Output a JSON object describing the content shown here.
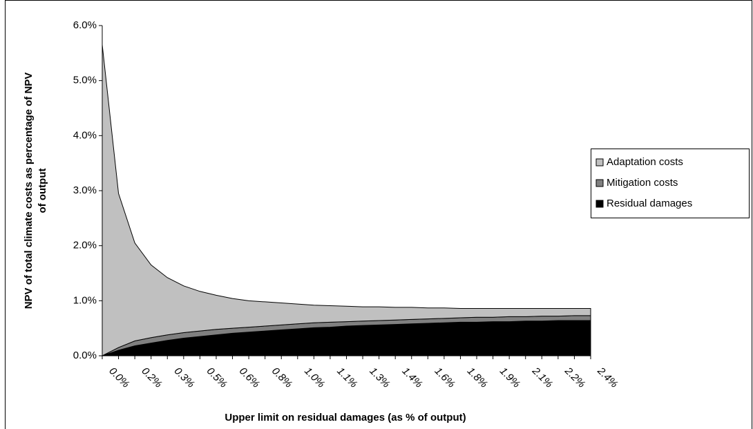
{
  "chart_data": {
    "type": "stacked_area",
    "y_label": [
      "NPV of total climate costs as percentage of NPV",
      "of output"
    ],
    "x_label": "Upper limit on residual damages (as % of output)",
    "categories": [
      "0.0%",
      null,
      "0.2%",
      null,
      "0.3%",
      null,
      "0.5%",
      null,
      "0.6%",
      null,
      "0.8%",
      null,
      "1.0%",
      null,
      "1.1%",
      null,
      "1.3%",
      null,
      "1.4%",
      null,
      "1.6%",
      null,
      "1.8%",
      null,
      "1.9%",
      null,
      "2.1%",
      null,
      "2.2%",
      null,
      "2.4%"
    ],
    "series": [
      {
        "name": "Residual damages",
        "color": "#000000",
        "values": [
          0,
          0.1,
          0.18,
          0.23,
          0.28,
          0.32,
          0.35,
          0.38,
          0.41,
          0.43,
          0.45,
          0.47,
          0.49,
          0.51,
          0.52,
          0.54,
          0.55,
          0.56,
          0.57,
          0.58,
          0.59,
          0.6,
          0.61,
          0.61,
          0.62,
          0.62,
          0.63,
          0.63,
          0.64,
          0.64,
          0.64
        ]
      },
      {
        "name": "Mitigation costs",
        "color": "#808080",
        "values": [
          0,
          0.05,
          0.09,
          0.1,
          0.1,
          0.1,
          0.1,
          0.1,
          0.09,
          0.09,
          0.09,
          0.09,
          0.09,
          0.09,
          0.09,
          0.08,
          0.08,
          0.08,
          0.08,
          0.08,
          0.08,
          0.08,
          0.08,
          0.09,
          0.08,
          0.09,
          0.08,
          0.09,
          0.08,
          0.09,
          0.09
        ]
      },
      {
        "name": "Adaptation costs",
        "color": "#c0c0c0",
        "values": [
          5.65,
          2.8,
          1.78,
          1.32,
          1.04,
          0.85,
          0.72,
          0.62,
          0.54,
          0.48,
          0.44,
          0.4,
          0.36,
          0.32,
          0.3,
          0.28,
          0.26,
          0.25,
          0.23,
          0.22,
          0.2,
          0.19,
          0.17,
          0.16,
          0.16,
          0.15,
          0.15,
          0.14,
          0.14,
          0.13,
          0.13
        ]
      }
    ],
    "ylim": [
      0,
      6
    ],
    "yticks": [
      {
        "value": 0,
        "label": "0.0%"
      },
      {
        "value": 1,
        "label": "1.0%"
      },
      {
        "value": 2,
        "label": "2.0%"
      },
      {
        "value": 3,
        "label": "3.0%"
      },
      {
        "value": 4,
        "label": "4.0%"
      },
      {
        "value": 5,
        "label": "5.0%"
      },
      {
        "value": 6,
        "label": "6.0%"
      }
    ],
    "legend": "right"
  }
}
